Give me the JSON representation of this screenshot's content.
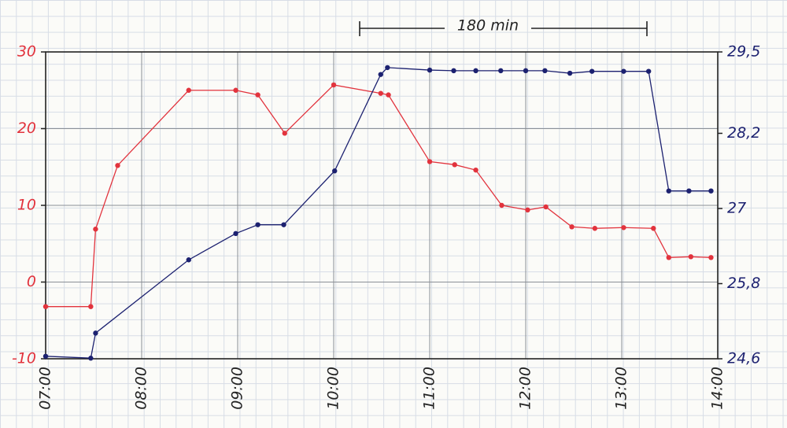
{
  "chart_data": {
    "type": "line",
    "annotation": "180 min",
    "xlim": [
      7,
      14
    ],
    "xticks": [
      {
        "value": 7,
        "label": "07:00"
      },
      {
        "value": 8,
        "label": "08:00"
      },
      {
        "value": 9,
        "label": "09:00"
      },
      {
        "value": 10,
        "label": "10:00"
      },
      {
        "value": 11,
        "label": "11:00"
      },
      {
        "value": 12,
        "label": "12:00"
      },
      {
        "value": 13,
        "label": "13:00"
      },
      {
        "value": 14,
        "label": "14:00"
      }
    ],
    "ylim": [
      -10,
      30
    ],
    "yticks": [
      -10,
      0,
      10,
      20,
      30
    ],
    "y2lim": [
      24.6,
      29.5
    ],
    "y2ticks": [
      {
        "value": 24.6,
        "label": "24,6"
      },
      {
        "value": 25.8,
        "label": "25,8"
      },
      {
        "value": 27,
        "label": "27"
      },
      {
        "value": 28.2,
        "label": "28,2"
      },
      {
        "value": 29.5,
        "label": "29,5"
      }
    ],
    "grid": true,
    "series": [
      {
        "color": "#e2333d",
        "axis": "y",
        "x": [
          7.0,
          7.47,
          7.52,
          7.75,
          8.49,
          8.98,
          9.21,
          9.49,
          10.0,
          10.49,
          10.57,
          11.0,
          11.26,
          11.48,
          11.75,
          12.02,
          12.21,
          12.48,
          12.72,
          13.02,
          13.33,
          13.49,
          13.72,
          13.93
        ],
        "values": [
          -3.2,
          -3.2,
          6.9,
          15.2,
          25.0,
          25.0,
          24.4,
          19.4,
          25.7,
          24.6,
          24.4,
          15.7,
          15.3,
          14.6,
          10.0,
          9.4,
          9.8,
          7.2,
          7.0,
          7.1,
          7.0,
          3.2,
          3.3,
          3.2
        ]
      },
      {
        "color": "#1c2170",
        "axis": "y2",
        "x": [
          7.0,
          7.47,
          7.52,
          8.49,
          8.98,
          9.21,
          9.48,
          10.01,
          10.49,
          10.56,
          11.0,
          11.25,
          11.48,
          11.74,
          12.0,
          12.2,
          12.46,
          12.69,
          13.02,
          13.28,
          13.49,
          13.7,
          13.93
        ],
        "values": [
          24.64,
          24.61,
          25.01,
          26.18,
          26.6,
          26.74,
          26.74,
          27.6,
          29.14,
          29.25,
          29.21,
          29.2,
          29.2,
          29.2,
          29.2,
          29.2,
          29.16,
          29.19,
          29.19,
          29.19,
          27.28,
          27.28,
          27.28
        ]
      }
    ]
  }
}
